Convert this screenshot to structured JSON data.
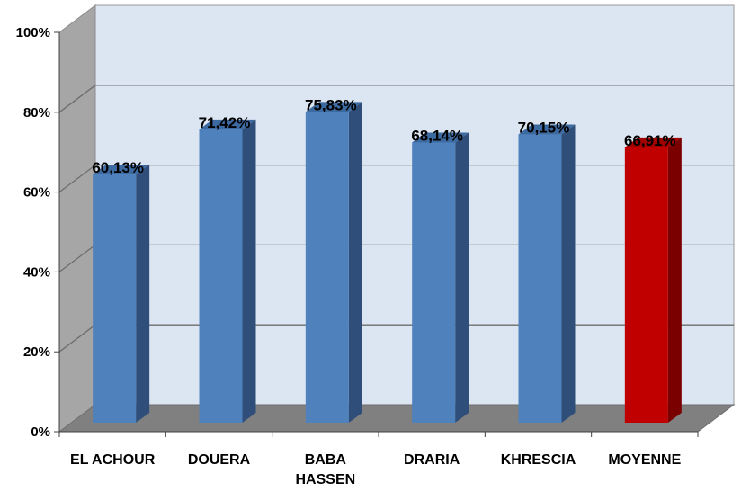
{
  "chart_data": {
    "type": "bar",
    "title": "",
    "xlabel": "",
    "ylabel": "",
    "ylim": [
      0,
      100
    ],
    "yticks": [
      "0%",
      "20%",
      "40%",
      "60%",
      "80%",
      "100%"
    ],
    "grid": true,
    "legend": "none",
    "categories": [
      [
        "EL ACHOUR"
      ],
      [
        "DOUERA"
      ],
      [
        "BABA",
        "HASSEN"
      ],
      [
        "DRARIA"
      ],
      [
        "KHRESCIA"
      ],
      [
        "MOYENNE"
      ]
    ],
    "values": [
      60.13,
      71.42,
      75.83,
      68.14,
      70.15,
      66.91
    ],
    "data_labels": [
      "60,13%",
      "71,42%",
      "75,83%",
      "68,14%",
      "70,15%",
      "66,91%"
    ],
    "colors": {
      "bar": "#4f81bd",
      "bar_top": "#3d6aa0",
      "bar_side": "#2f4f7a",
      "highlight_bar": "#c00000",
      "highlight_top": "#a00000",
      "highlight_side": "#7a0000",
      "plot_back": "#dce6f2",
      "walls": "#a6a6a6",
      "floor": "#808080"
    },
    "highlight_index": 5
  }
}
